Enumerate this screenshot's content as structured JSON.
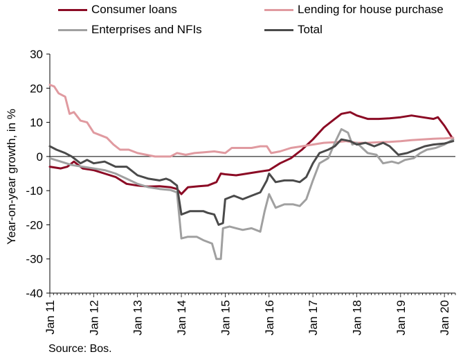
{
  "chart_data": {
    "type": "line",
    "ylabel": "Year-on-year growth, in %",
    "ylim": [
      -40,
      30
    ],
    "yticks": [
      30,
      20,
      10,
      0,
      -10,
      -20,
      -30,
      -40
    ],
    "xlim": [
      2011,
      2020.25
    ],
    "xticks": [
      {
        "label": "Jan 11",
        "x": 2011
      },
      {
        "label": "Jan 12",
        "x": 2012
      },
      {
        "label": "Jan 13",
        "x": 2013
      },
      {
        "label": "Jan 14",
        "x": 2014
      },
      {
        "label": "Jan 15",
        "x": 2015
      },
      {
        "label": "Jan 16",
        "x": 2016
      },
      {
        "label": "Jan 17",
        "x": 2017
      },
      {
        "label": "Jan 18",
        "x": 2018
      },
      {
        "label": "Jan 19",
        "x": 2019
      },
      {
        "label": "Jan 20",
        "x": 2020
      }
    ],
    "grid": false,
    "legend_position": "top",
    "series": [
      {
        "name": "Consumer loans",
        "color": "#8b0a24",
        "points": [
          [
            2011,
            -3
          ],
          [
            2011.25,
            -3.5
          ],
          [
            2011.4,
            -3
          ],
          [
            2011.55,
            -1.5
          ],
          [
            2011.75,
            -3.5
          ],
          [
            2012,
            -4
          ],
          [
            2012.25,
            -5
          ],
          [
            2012.5,
            -6
          ],
          [
            2012.75,
            -8
          ],
          [
            2013,
            -8.5
          ],
          [
            2013.25,
            -8.8
          ],
          [
            2013.5,
            -8.7
          ],
          [
            2013.75,
            -9
          ],
          [
            2013.9,
            -9.5
          ],
          [
            2014,
            -11
          ],
          [
            2014.15,
            -9
          ],
          [
            2014.4,
            -8.7
          ],
          [
            2014.6,
            -8.5
          ],
          [
            2014.8,
            -7.5
          ],
          [
            2014.9,
            -5
          ],
          [
            2015,
            -5.2
          ],
          [
            2015.25,
            -5.5
          ],
          [
            2015.5,
            -5
          ],
          [
            2015.75,
            -4.5
          ],
          [
            2016,
            -4
          ],
          [
            2016.25,
            -2
          ],
          [
            2016.5,
            -0.5
          ],
          [
            2016.75,
            2
          ],
          [
            2017,
            5
          ],
          [
            2017.25,
            8.5
          ],
          [
            2017.5,
            11
          ],
          [
            2017.65,
            12.5
          ],
          [
            2017.85,
            13
          ],
          [
            2018,
            12
          ],
          [
            2018.25,
            11
          ],
          [
            2018.5,
            11
          ],
          [
            2018.75,
            11.2
          ],
          [
            2019,
            11.5
          ],
          [
            2019.25,
            12
          ],
          [
            2019.5,
            11.5
          ],
          [
            2019.75,
            11
          ],
          [
            2019.85,
            11.5
          ],
          [
            2020,
            9
          ],
          [
            2020.2,
            5
          ]
        ]
      },
      {
        "name": "Lending for house purchase",
        "color": "#e09aa0",
        "points": [
          [
            2011,
            21
          ],
          [
            2011.1,
            20.5
          ],
          [
            2011.2,
            18.5
          ],
          [
            2011.35,
            17.5
          ],
          [
            2011.45,
            12.5
          ],
          [
            2011.55,
            13
          ],
          [
            2011.7,
            10.5
          ],
          [
            2011.85,
            10
          ],
          [
            2012,
            7
          ],
          [
            2012.1,
            6.5
          ],
          [
            2012.3,
            5.5
          ],
          [
            2012.45,
            3.5
          ],
          [
            2012.6,
            2
          ],
          [
            2012.8,
            2
          ],
          [
            2013,
            1
          ],
          [
            2013.2,
            0.5
          ],
          [
            2013.4,
            0
          ],
          [
            2013.6,
            0
          ],
          [
            2013.75,
            0
          ],
          [
            2013.9,
            1
          ],
          [
            2014.1,
            0.5
          ],
          [
            2014.3,
            1
          ],
          [
            2014.5,
            1.2
          ],
          [
            2014.75,
            1.5
          ],
          [
            2015,
            1
          ],
          [
            2015.15,
            2.5
          ],
          [
            2015.35,
            2.5
          ],
          [
            2015.6,
            2.5
          ],
          [
            2015.8,
            3
          ],
          [
            2015.95,
            3
          ],
          [
            2016.05,
            1
          ],
          [
            2016.25,
            1.5
          ],
          [
            2016.5,
            2.5
          ],
          [
            2016.75,
            3
          ],
          [
            2017,
            3.5
          ],
          [
            2017.25,
            4
          ],
          [
            2017.5,
            4.2
          ],
          [
            2017.75,
            4.5
          ],
          [
            2018,
            4
          ],
          [
            2018.25,
            4
          ],
          [
            2018.5,
            4.2
          ],
          [
            2018.75,
            4.3
          ],
          [
            2019,
            4.5
          ],
          [
            2019.25,
            4.8
          ],
          [
            2019.5,
            5
          ],
          [
            2019.75,
            5.2
          ],
          [
            2020,
            5.3
          ],
          [
            2020.2,
            5.5
          ]
        ]
      },
      {
        "name": "Enterprises and NFIs",
        "color": "#a0a0a0",
        "points": [
          [
            2011,
            -0.5
          ],
          [
            2011.25,
            -1.5
          ],
          [
            2011.5,
            -2.5
          ],
          [
            2011.75,
            -3
          ],
          [
            2012,
            -3.5
          ],
          [
            2012.25,
            -4
          ],
          [
            2012.5,
            -5
          ],
          [
            2012.75,
            -6.5
          ],
          [
            2013,
            -8
          ],
          [
            2013.25,
            -9
          ],
          [
            2013.5,
            -9.5
          ],
          [
            2013.75,
            -9.8
          ],
          [
            2013.9,
            -10.5
          ],
          [
            2014,
            -24
          ],
          [
            2014.15,
            -23.5
          ],
          [
            2014.35,
            -23.5
          ],
          [
            2014.5,
            -24.5
          ],
          [
            2014.7,
            -25.5
          ],
          [
            2014.8,
            -30
          ],
          [
            2014.9,
            -30
          ],
          [
            2014.95,
            -21
          ],
          [
            2015.1,
            -20.5
          ],
          [
            2015.25,
            -21
          ],
          [
            2015.4,
            -21.5
          ],
          [
            2015.6,
            -21
          ],
          [
            2015.8,
            -22
          ],
          [
            2015.9,
            -16
          ],
          [
            2016,
            -11
          ],
          [
            2016.15,
            -15
          ],
          [
            2016.35,
            -14
          ],
          [
            2016.55,
            -14
          ],
          [
            2016.7,
            -14.5
          ],
          [
            2016.85,
            -12.5
          ],
          [
            2017,
            -7
          ],
          [
            2017.15,
            -2
          ],
          [
            2017.35,
            -0.5
          ],
          [
            2017.5,
            4
          ],
          [
            2017.65,
            8
          ],
          [
            2017.8,
            7
          ],
          [
            2017.9,
            3.5
          ],
          [
            2018,
            4
          ],
          [
            2018.25,
            1
          ],
          [
            2018.45,
            0.5
          ],
          [
            2018.6,
            -2
          ],
          [
            2018.8,
            -1.5
          ],
          [
            2018.95,
            -2
          ],
          [
            2019.1,
            -1
          ],
          [
            2019.3,
            -0.5
          ],
          [
            2019.45,
            1
          ],
          [
            2019.6,
            2
          ],
          [
            2019.8,
            2.5
          ],
          [
            2020,
            3.5
          ],
          [
            2020.2,
            5
          ]
        ]
      },
      {
        "name": "Total",
        "color": "#4a4a4a",
        "points": [
          [
            2011,
            3
          ],
          [
            2011.15,
            2
          ],
          [
            2011.35,
            1
          ],
          [
            2011.5,
            0
          ],
          [
            2011.7,
            -2
          ],
          [
            2011.85,
            -1
          ],
          [
            2012,
            -2
          ],
          [
            2012.25,
            -1.5
          ],
          [
            2012.5,
            -3
          ],
          [
            2012.75,
            -3
          ],
          [
            2013,
            -5.5
          ],
          [
            2013.25,
            -6.5
          ],
          [
            2013.5,
            -7
          ],
          [
            2013.65,
            -6.5
          ],
          [
            2013.75,
            -7
          ],
          [
            2013.9,
            -8.5
          ],
          [
            2014,
            -17
          ],
          [
            2014.2,
            -16
          ],
          [
            2014.5,
            -16
          ],
          [
            2014.6,
            -16.5
          ],
          [
            2014.75,
            -17
          ],
          [
            2014.85,
            -20
          ],
          [
            2014.95,
            -19.5
          ],
          [
            2015,
            -12.5
          ],
          [
            2015.2,
            -11.5
          ],
          [
            2015.4,
            -12.5
          ],
          [
            2015.6,
            -11.5
          ],
          [
            2015.8,
            -10.5
          ],
          [
            2015.95,
            -7
          ],
          [
            2016,
            -5
          ],
          [
            2016.15,
            -7.5
          ],
          [
            2016.35,
            -7
          ],
          [
            2016.55,
            -7
          ],
          [
            2016.7,
            -7.5
          ],
          [
            2016.85,
            -6
          ],
          [
            2017,
            -2
          ],
          [
            2017.15,
            1
          ],
          [
            2017.35,
            2
          ],
          [
            2017.5,
            3
          ],
          [
            2017.65,
            5
          ],
          [
            2017.85,
            4.5
          ],
          [
            2018,
            3.5
          ],
          [
            2018.2,
            4
          ],
          [
            2018.4,
            3
          ],
          [
            2018.6,
            4
          ],
          [
            2018.75,
            3
          ],
          [
            2018.95,
            0.5
          ],
          [
            2019.15,
            1
          ],
          [
            2019.35,
            2
          ],
          [
            2019.55,
            3
          ],
          [
            2019.75,
            3.5
          ],
          [
            2020,
            3.8
          ],
          [
            2020.2,
            4.5
          ]
        ]
      }
    ],
    "source": "Source: Bos."
  }
}
